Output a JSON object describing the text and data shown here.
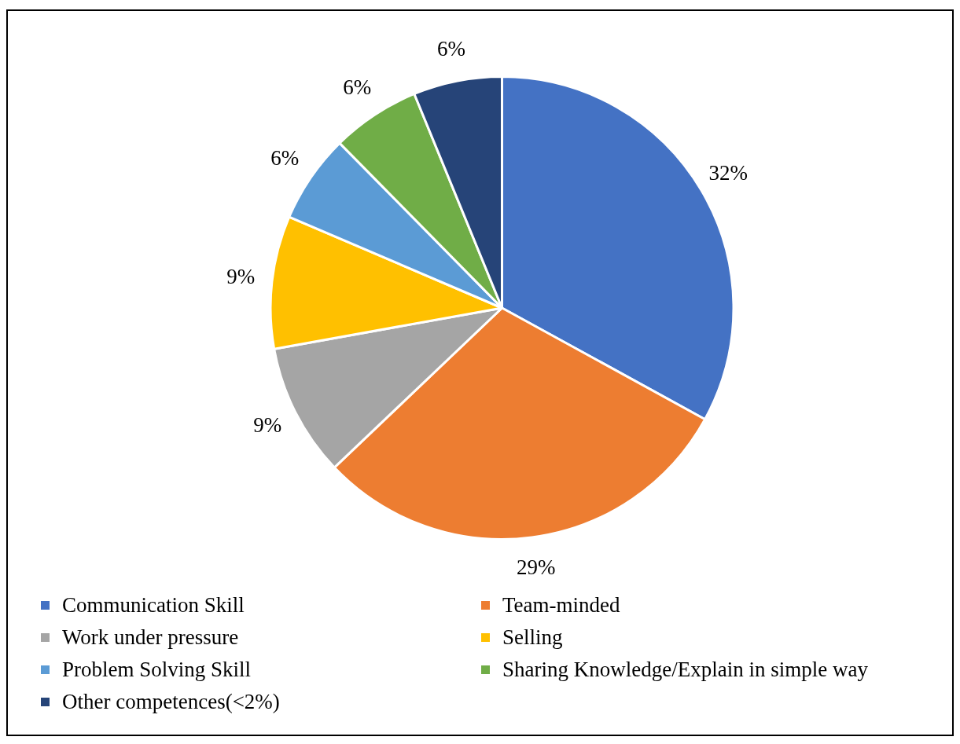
{
  "chart_data": {
    "type": "pie",
    "categories": [
      "Communication Skill",
      "Team-minded",
      "Work under pressure",
      "Selling",
      "Problem Solving Skill",
      "Sharing Knowledge/Explain in simple way",
      "Other competences(<2%)"
    ],
    "values": [
      32,
      29,
      9,
      9,
      6,
      6,
      6
    ],
    "colors": [
      "#4472c4",
      "#ed7d31",
      "#a5a5a5",
      "#ffc000",
      "#5b9bd5",
      "#70ad47",
      "#264478"
    ],
    "value_labels": [
      "32%",
      "29%",
      "9%",
      "9%",
      "6%",
      "6%",
      "6%"
    ],
    "legend": "bottom"
  }
}
